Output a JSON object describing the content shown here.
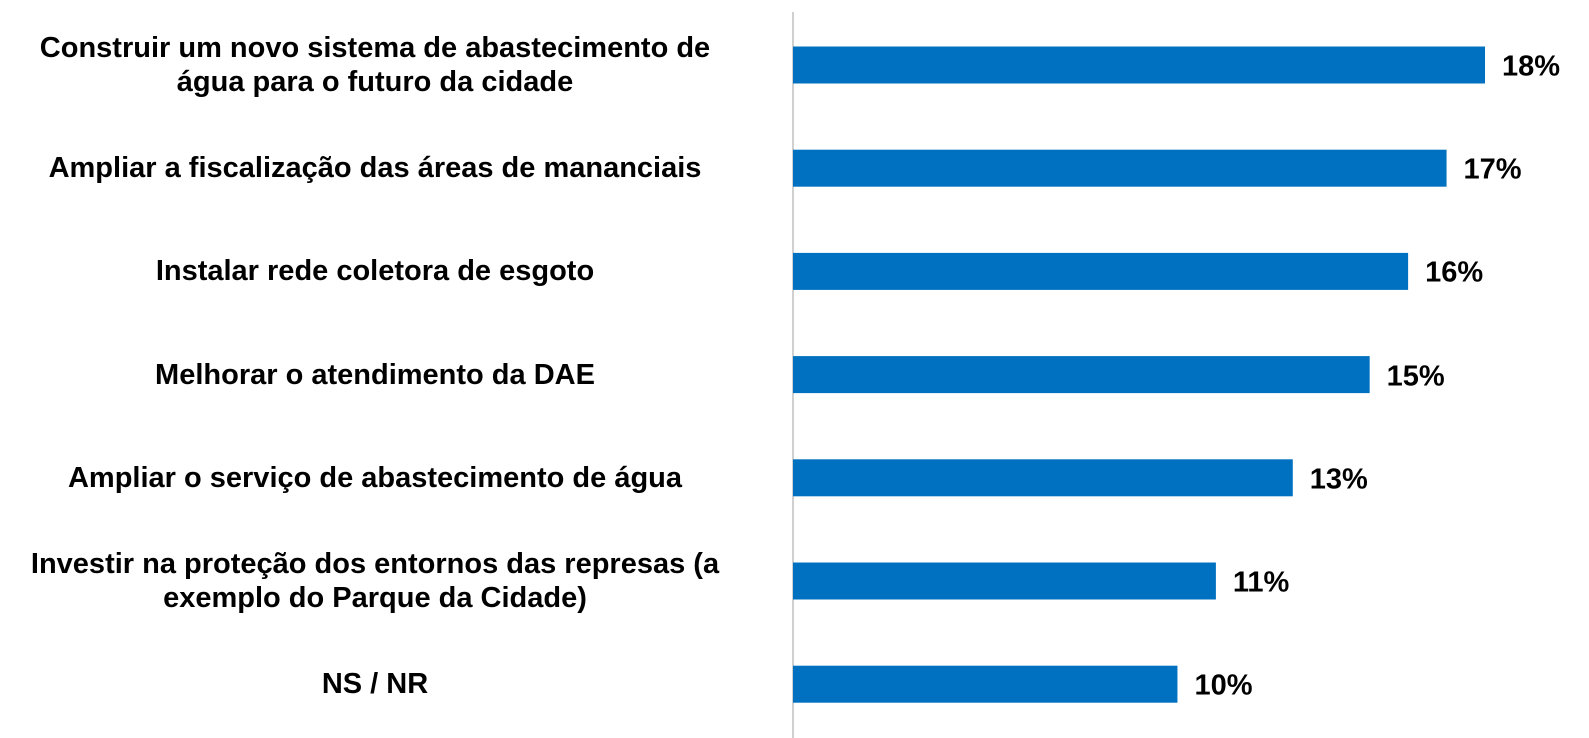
{
  "chart_data": {
    "type": "bar",
    "orientation": "horizontal",
    "categories": [
      "Construir um novo sistema de abastecimento de\nágua para o futuro da cidade",
      "Ampliar a fiscalização das áreas de mananciais",
      "Instalar rede coletora de esgoto",
      "Melhorar o atendimento da DAE",
      "Ampliar o serviço de abastecimento de água",
      "Investir na proteção dos entornos das represas (a\nexemplo do Parque da Cidade)",
      "NS / NR"
    ],
    "values": [
      18,
      17,
      16,
      15,
      13,
      11,
      10
    ],
    "value_labels": [
      "18%",
      "17%",
      "16%",
      "15%",
      "13%",
      "11%",
      "10%"
    ],
    "color": "#0070c0"
  }
}
